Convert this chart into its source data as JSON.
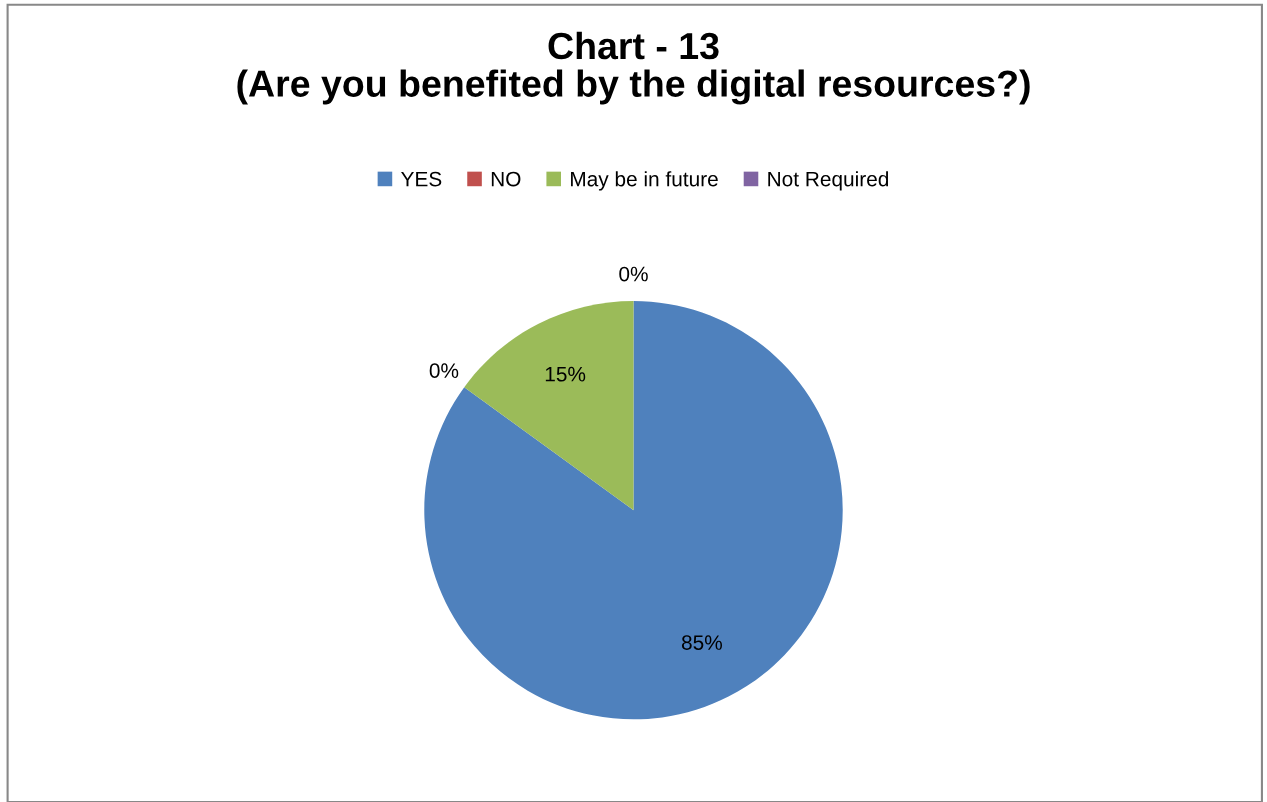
{
  "chart_data": {
    "type": "pie",
    "title": "Chart - 13\n(Are you benefited by the digital resources?)",
    "categories": [
      "YES",
      "NO",
      "May be in future",
      "Not Required"
    ],
    "values": [
      85,
      0,
      15,
      0
    ],
    "colors": [
      "#4f81bd",
      "#c0504d",
      "#9bbb59",
      "#8064a2"
    ],
    "value_labels": [
      "85%",
      "0%",
      "15%",
      "0%"
    ],
    "legend": "top"
  }
}
